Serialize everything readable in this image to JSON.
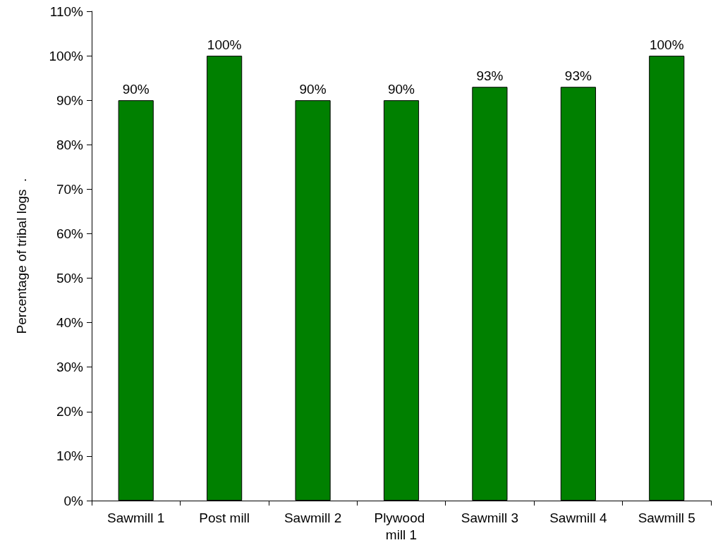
{
  "chart_data": {
    "type": "bar",
    "ylabel": "Percentage of tribal logs  .",
    "categories": [
      "Sawmill 1",
      "Post mill",
      "Sawmill 2",
      "Plywood mill 1",
      "Sawmill 3",
      "Sawmill 4",
      "Sawmill 5"
    ],
    "values": [
      90,
      100,
      90,
      90,
      93,
      93,
      100
    ],
    "value_labels": [
      "90%",
      "100%",
      "90%",
      "90%",
      "93%",
      "93%",
      "100%"
    ],
    "color": "#008000",
    "ylim": [
      0,
      110
    ],
    "yticks": [
      {
        "value": 0,
        "label": "0%"
      },
      {
        "value": 10,
        "label": "10%"
      },
      {
        "value": 20,
        "label": "20%"
      },
      {
        "value": 30,
        "label": "30%"
      },
      {
        "value": 40,
        "label": "40%"
      },
      {
        "value": 50,
        "label": "50%"
      },
      {
        "value": 60,
        "label": "60%"
      },
      {
        "value": 70,
        "label": "70%"
      },
      {
        "value": 80,
        "label": "80%"
      },
      {
        "value": 90,
        "label": "90%"
      },
      {
        "value": 100,
        "label": "100%"
      },
      {
        "value": 110,
        "label": "110%"
      }
    ],
    "grid": false
  }
}
